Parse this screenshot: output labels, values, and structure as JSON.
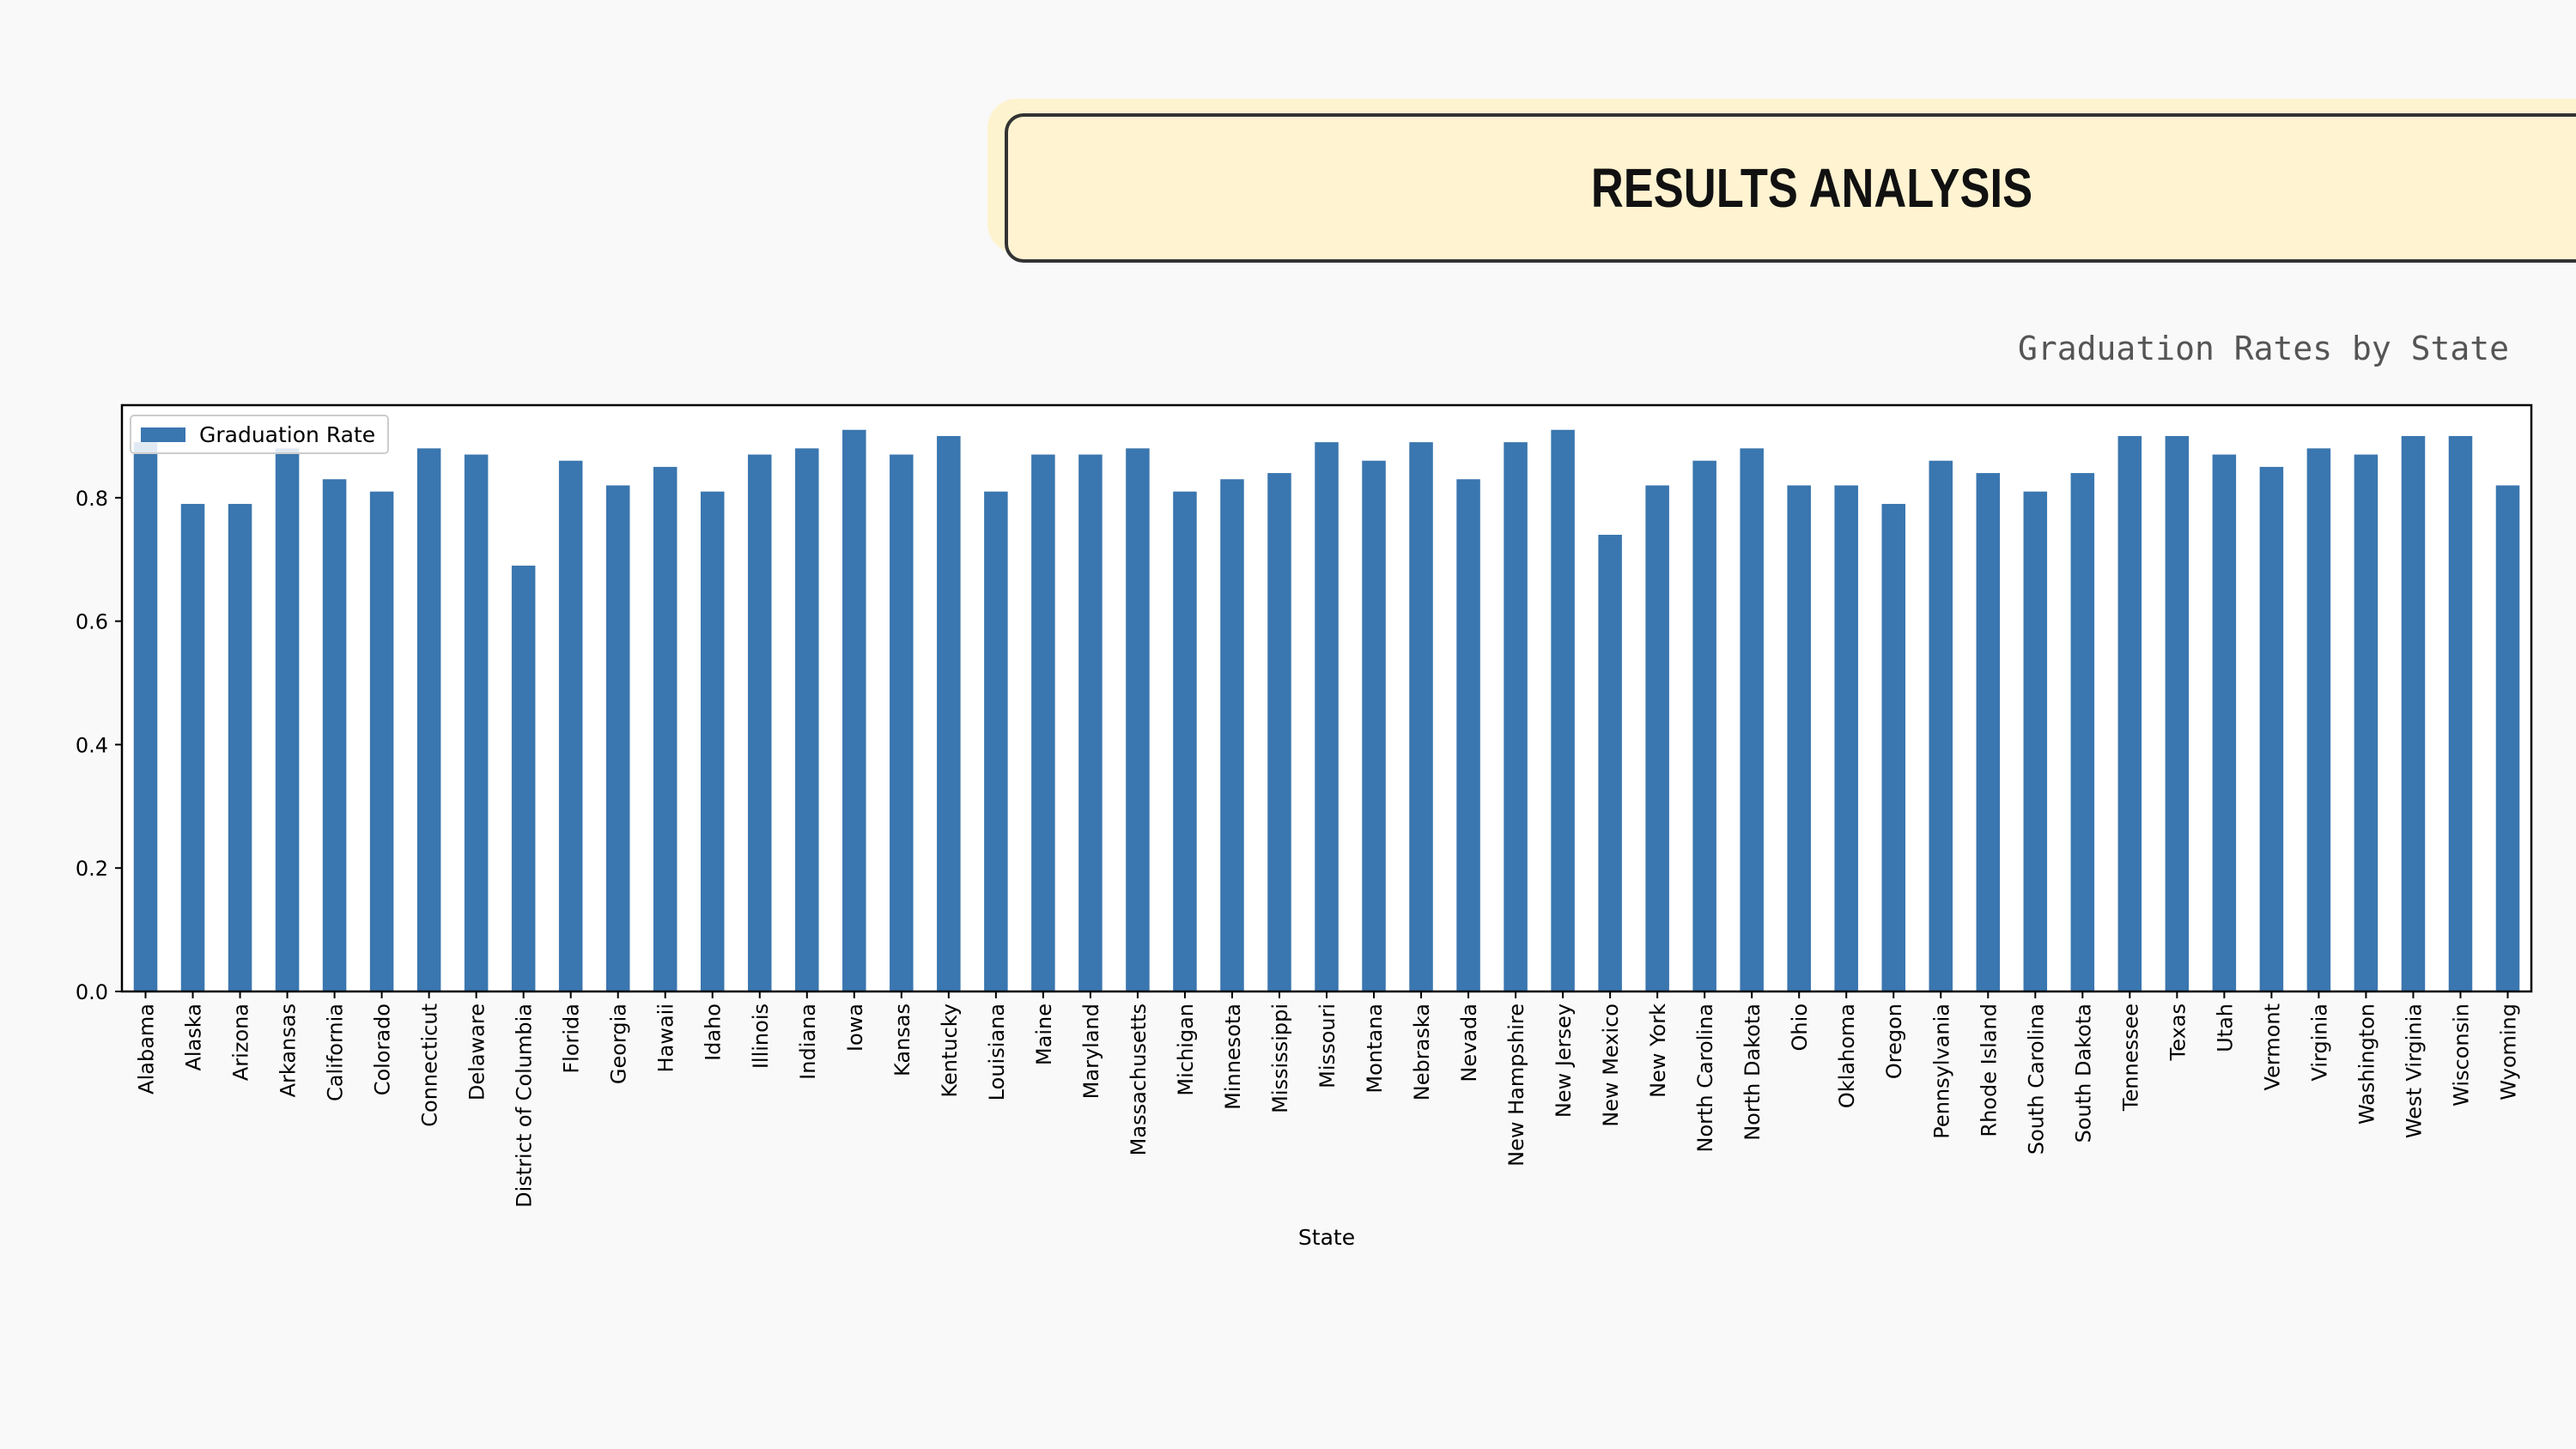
{
  "slide": {
    "title": "RESULTS ANALYSIS",
    "subtitle": "Graduation Rates by State"
  },
  "colors": {
    "bar": "#3a76af",
    "banner_fill": "#fff3d1",
    "banner_border": "#333333",
    "background": "#f9f9f9"
  },
  "chart_data": {
    "type": "bar",
    "title": "",
    "xlabel": "State",
    "ylabel": "",
    "ylim": [
      0,
      0.95
    ],
    "yticks": [
      "0.0",
      "0.2",
      "0.4",
      "0.6",
      "0.8"
    ],
    "legend": {
      "position": "top-left"
    },
    "grid": false,
    "categories": [
      "Alabama",
      "Alaska",
      "Arizona",
      "Arkansas",
      "California",
      "Colorado",
      "Connecticut",
      "Delaware",
      "District of Columbia",
      "Florida",
      "Georgia",
      "Hawaii",
      "Idaho",
      "Illinois",
      "Indiana",
      "Iowa",
      "Kansas",
      "Kentucky",
      "Louisiana",
      "Maine",
      "Maryland",
      "Massachusetts",
      "Michigan",
      "Minnesota",
      "Mississippi",
      "Missouri",
      "Montana",
      "Nebraska",
      "Nevada",
      "New Hampshire",
      "New Jersey",
      "New Mexico",
      "New York",
      "North Carolina",
      "North Dakota",
      "Ohio",
      "Oklahoma",
      "Oregon",
      "Pennsylvania",
      "Rhode Island",
      "South Carolina",
      "South Dakota",
      "Tennessee",
      "Texas",
      "Utah",
      "Vermont",
      "Virginia",
      "Washington",
      "West Virginia",
      "Wisconsin",
      "Wyoming"
    ],
    "series": [
      {
        "name": "Graduation Rate",
        "values": [
          0.89,
          0.79,
          0.79,
          0.88,
          0.83,
          0.81,
          0.88,
          0.87,
          0.69,
          0.86,
          0.82,
          0.85,
          0.81,
          0.87,
          0.88,
          0.91,
          0.87,
          0.9,
          0.81,
          0.87,
          0.87,
          0.88,
          0.81,
          0.83,
          0.84,
          0.89,
          0.86,
          0.89,
          0.83,
          0.89,
          0.91,
          0.74,
          0.82,
          0.86,
          0.88,
          0.82,
          0.82,
          0.79,
          0.86,
          0.84,
          0.81,
          0.84,
          0.9,
          0.9,
          0.87,
          0.85,
          0.88,
          0.87,
          0.9,
          0.9,
          0.82
        ]
      }
    ]
  }
}
